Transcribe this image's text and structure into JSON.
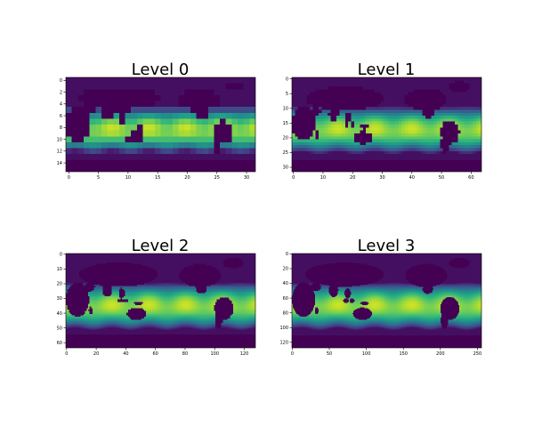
{
  "figure": {
    "background": "#ffffff"
  },
  "chart_data": [
    {
      "type": "heatmap",
      "title": "Level 0",
      "grid_shape": [
        16,
        32
      ],
      "xlim": [
        -0.5,
        31.5
      ],
      "ylim": [
        15.5,
        -0.5
      ],
      "xticks": [
        0,
        5,
        10,
        15,
        20,
        25,
        30
      ],
      "yticks": [
        0,
        2,
        4,
        6,
        8,
        10,
        12,
        14
      ],
      "colormap": "viridis",
      "grid": false
    },
    {
      "type": "heatmap",
      "title": "Level 1",
      "grid_shape": [
        32,
        64
      ],
      "xlim": [
        -0.5,
        63.5
      ],
      "ylim": [
        31.5,
        -0.5
      ],
      "xticks": [
        0,
        10,
        20,
        30,
        40,
        50,
        60
      ],
      "yticks": [
        0,
        5,
        10,
        15,
        20,
        25,
        30
      ],
      "colormap": "viridis",
      "grid": false
    },
    {
      "type": "heatmap",
      "title": "Level 2",
      "grid_shape": [
        64,
        128
      ],
      "xlim": [
        -0.5,
        127.5
      ],
      "ylim": [
        63.5,
        -0.5
      ],
      "xticks": [
        0,
        20,
        40,
        60,
        80,
        100,
        120
      ],
      "yticks": [
        0,
        10,
        20,
        30,
        40,
        50,
        60
      ],
      "colormap": "viridis",
      "grid": false
    },
    {
      "type": "heatmap",
      "title": "Level 3",
      "grid_shape": [
        128,
        256
      ],
      "xlim": [
        -0.5,
        255.5
      ],
      "ylim": [
        127.5,
        -0.5
      ],
      "xticks": [
        0,
        50,
        100,
        150,
        200,
        250
      ],
      "yticks": [
        0,
        20,
        40,
        60,
        80,
        100,
        120
      ],
      "colormap": "viridis",
      "grid": false
    }
  ]
}
